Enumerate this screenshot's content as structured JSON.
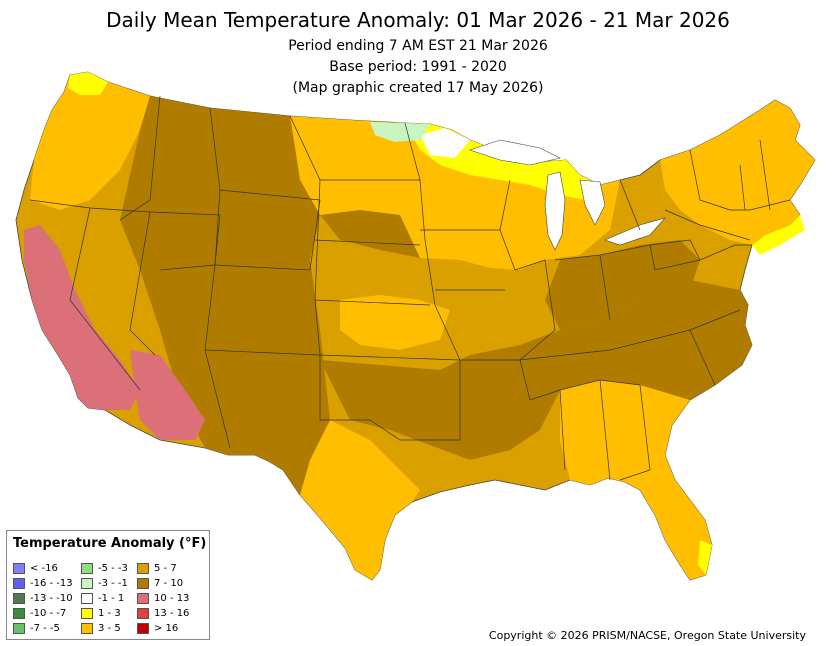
{
  "title": "Daily Mean Temperature Anomaly: 01 Mar 2026 - 21 Mar 2026",
  "subtitle_lines": [
    "Period ending 7 AM EST 21 Mar 2026",
    "Base period: 1991 - 2020",
    "(Map graphic created 17 May 2026)"
  ],
  "legend": {
    "title": "Temperature Anomaly (°F)",
    "items": [
      {
        "label": "< -16",
        "color": "#8080ff"
      },
      {
        "label": "-16 - -13",
        "color": "#6060f0"
      },
      {
        "label": "-13 - -10",
        "color": "#557755"
      },
      {
        "label": "-10 - -7",
        "color": "#3c8c3c"
      },
      {
        "label": "-7 - -5",
        "color": "#66c266"
      },
      {
        "label": "-5 - -3",
        "color": "#90dd80"
      },
      {
        "label": "-3 - -1",
        "color": "#c8f5c0"
      },
      {
        "label": "-1 - 1",
        "color": "#ffffff"
      },
      {
        "label": "1 - 3",
        "color": "#ffff00"
      },
      {
        "label": "3 - 5",
        "color": "#ffbe00"
      },
      {
        "label": "5 - 7",
        "color": "#d9a000"
      },
      {
        "label": "7 - 10",
        "color": "#b07c00"
      },
      {
        "label": "10 - 13",
        "color": "#dc7078"
      },
      {
        "label": "13 - 16",
        "color": "#e04040"
      },
      {
        "label": "> 16",
        "color": "#c00000"
      }
    ]
  },
  "copyright": "Copyright © 2026 PRISM/NACSE, Oregon State University"
}
